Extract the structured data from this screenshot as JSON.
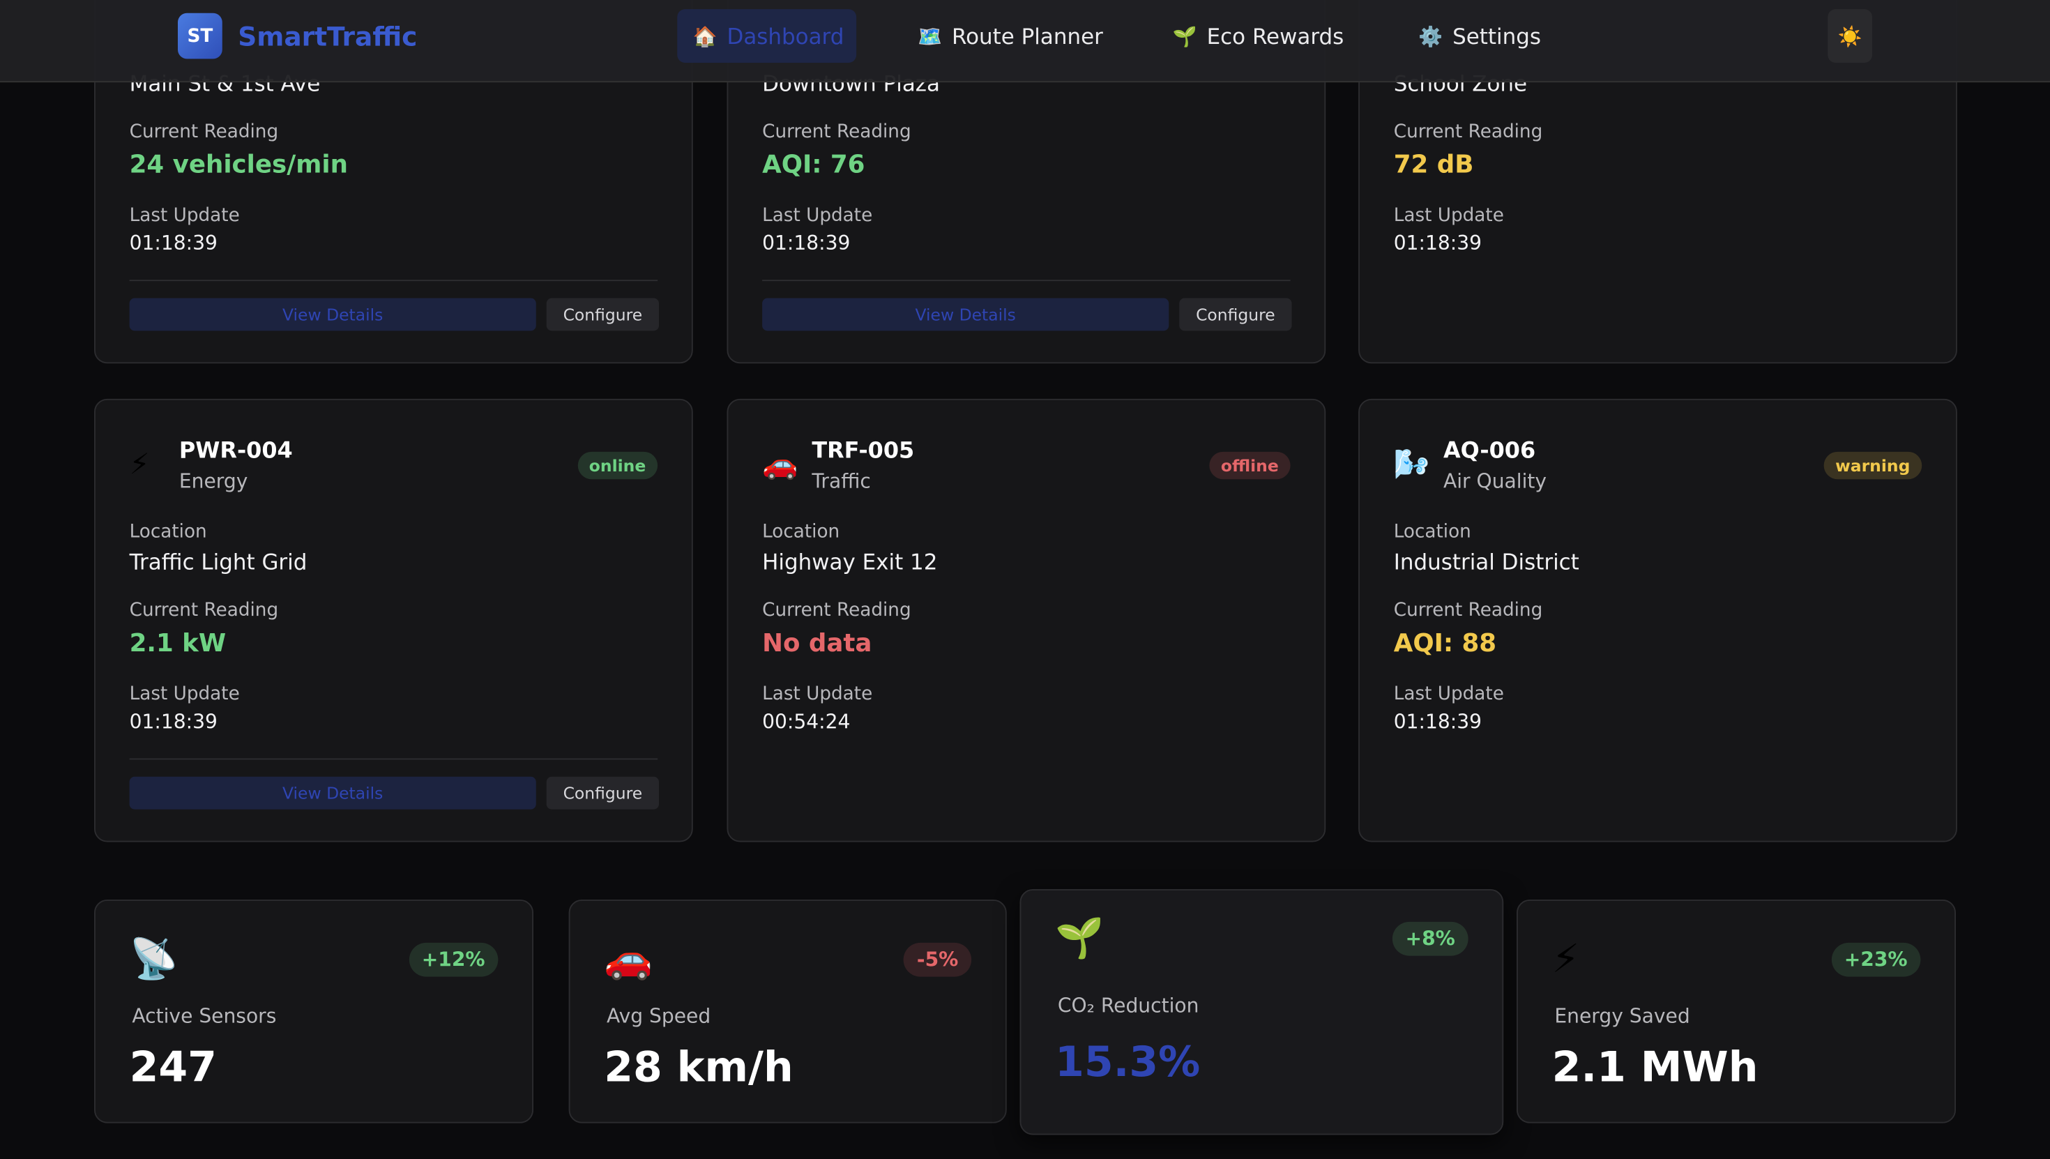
{
  "nav": {
    "logo": "ST",
    "brand": "SmartTraffic",
    "theme_icon": "☀️",
    "items": [
      {
        "icon": "🏠",
        "label": "Dashboard",
        "active": true
      },
      {
        "icon": "🗺️",
        "label": "Route Planner",
        "active": false
      },
      {
        "icon": "🌱",
        "label": "Eco Rewards",
        "active": false
      },
      {
        "icon": "⚙️",
        "label": "Settings",
        "active": false
      }
    ]
  },
  "sensors": [
    {
      "location": "Main St & 1st Ave",
      "reading_label": "Current Reading",
      "reading": "24 vehicles/min",
      "reading_color": "#6fd384",
      "update_label": "Last Update",
      "updated": "01:18:39",
      "actions": [
        "View Details",
        "Configure"
      ]
    },
    {
      "location": "Downtown Plaza",
      "reading_label": "Current Reading",
      "reading": "AQI: 76",
      "reading_color": "#6fd384",
      "update_label": "Last Update",
      "updated": "01:18:39",
      "actions": [
        "View Details",
        "Configure"
      ]
    },
    {
      "location": "School Zone",
      "reading_label": "Current Reading",
      "reading": "72 dB",
      "reading_color": "#f2c94c",
      "update_label": "Last Update",
      "updated": "01:18:39"
    },
    {
      "icon": "⚡",
      "id": "PWR-004",
      "kind": "Energy",
      "status": "online",
      "status_color": "#6fd384",
      "location_label": "Location",
      "location": "Traffic Light Grid",
      "reading_label": "Current Reading",
      "reading": "2.1 kW",
      "reading_color": "#6fd384",
      "update_label": "Last Update",
      "updated": "01:18:39",
      "actions": [
        "View Details",
        "Configure"
      ]
    },
    {
      "icon": "🚗",
      "id": "TRF-005",
      "kind": "Traffic",
      "status": "offline",
      "status_color": "#e5676a",
      "location_label": "Location",
      "location": "Highway Exit 12",
      "reading_label": "Current Reading",
      "reading": "No data",
      "reading_color": "#e5676a",
      "update_label": "Last Update",
      "updated": "00:54:24"
    },
    {
      "icon": "🌬️",
      "id": "AQ-006",
      "kind": "Air Quality",
      "status": "warning",
      "status_color": "#f2c94c",
      "location_label": "Location",
      "location": "Industrial District",
      "reading_label": "Current Reading",
      "reading": "AQI: 88",
      "reading_color": "#f2c94c",
      "update_label": "Last Update",
      "updated": "01:18:39"
    }
  ],
  "stats": [
    {
      "icon": "📡",
      "change": "+12%",
      "change_color": "#6fd384",
      "label": "Active Sensors",
      "value": "247",
      "value_color": "#ffffff"
    },
    {
      "icon": "🚗",
      "change": "-5%",
      "change_color": "#e5676a",
      "label": "Avg Speed",
      "value": "28 km/h",
      "value_color": "#ffffff"
    },
    {
      "icon": "🌱",
      "change": "+8%",
      "change_color": "#6fd384",
      "label": "CO₂ Reduction",
      "value": "15.3%",
      "value_color": "#2f45b3",
      "raised": true
    },
    {
      "icon": "⚡",
      "change": "+23%",
      "change_color": "#6fd384",
      "label": "Energy Saved",
      "value": "2.1 MWh",
      "value_color": "#ffffff"
    }
  ]
}
